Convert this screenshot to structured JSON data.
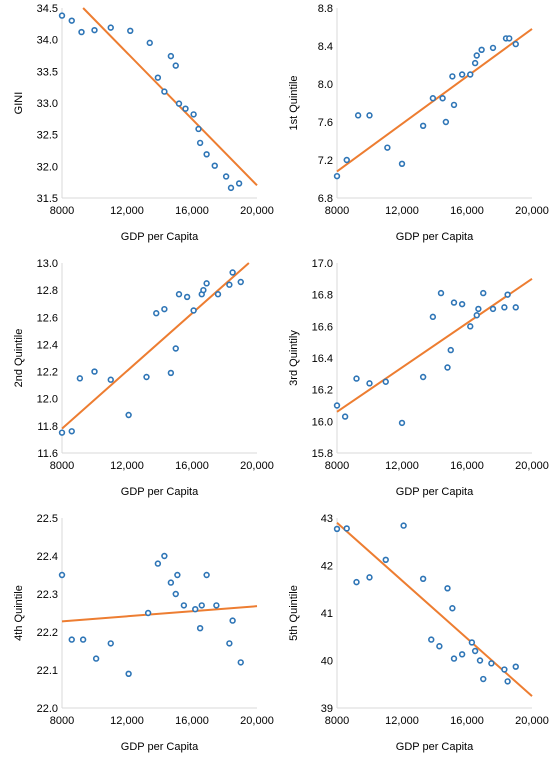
{
  "colors": {
    "points": "#2E75B6",
    "trend": "#ED7D31",
    "axis": "#D9D9D9"
  },
  "chart_data": [
    {
      "type": "scatter",
      "xlabel": "GDP per Capita",
      "ylabel": "GINI",
      "xlim": [
        8000,
        20000
      ],
      "ylim": [
        31.5,
        34.5
      ],
      "xticks": [
        "8000",
        "12,000",
        "16,000",
        "20,000"
      ],
      "yticks": [
        "31.5",
        "32.0",
        "32.5",
        "33.0",
        "33.5",
        "34.0",
        "34.5"
      ],
      "trendline": {
        "x": [
          9300,
          20000
        ],
        "y": [
          34.5,
          31.7
        ]
      },
      "points": [
        [
          8000,
          34.38
        ],
        [
          8600,
          34.3
        ],
        [
          9200,
          34.12
        ],
        [
          10000,
          34.15
        ],
        [
          11000,
          34.19
        ],
        [
          12200,
          34.14
        ],
        [
          13400,
          33.95
        ],
        [
          13900,
          33.4
        ],
        [
          14300,
          33.18
        ],
        [
          14700,
          33.74
        ],
        [
          15000,
          33.59
        ],
        [
          15200,
          32.99
        ],
        [
          15600,
          32.91
        ],
        [
          16100,
          32.82
        ],
        [
          16400,
          32.59
        ],
        [
          16500,
          32.37
        ],
        [
          16900,
          32.19
        ],
        [
          17400,
          32.01
        ],
        [
          18100,
          31.84
        ],
        [
          18400,
          31.66
        ],
        [
          18900,
          31.73
        ]
      ]
    },
    {
      "type": "scatter",
      "xlabel": "GDP per Capita",
      "ylabel": "1st Quintile",
      "xlim": [
        8000,
        20000
      ],
      "ylim": [
        6.8,
        8.8
      ],
      "xticks": [
        "8000",
        "12,000",
        "16,000",
        "20,000"
      ],
      "yticks": [
        "6.8",
        "7.2",
        "7.6",
        "8.0",
        "8.4",
        "8.8"
      ],
      "trendline": {
        "x": [
          8000,
          20000
        ],
        "y": [
          7.08,
          8.58
        ]
      },
      "points": [
        [
          8000,
          7.03
        ],
        [
          8600,
          7.2
        ],
        [
          9300,
          7.67
        ],
        [
          10000,
          7.67
        ],
        [
          11100,
          7.33
        ],
        [
          12000,
          7.16
        ],
        [
          13300,
          7.56
        ],
        [
          13900,
          7.85
        ],
        [
          14500,
          7.85
        ],
        [
          14700,
          7.6
        ],
        [
          15100,
          8.08
        ],
        [
          15200,
          7.78
        ],
        [
          15700,
          8.1
        ],
        [
          16200,
          8.1
        ],
        [
          16500,
          8.22
        ],
        [
          16600,
          8.3
        ],
        [
          16900,
          8.36
        ],
        [
          17600,
          8.38
        ],
        [
          18400,
          8.48
        ],
        [
          18600,
          8.48
        ],
        [
          19000,
          8.42
        ]
      ]
    },
    {
      "type": "scatter",
      "xlabel": "GDP per Capita",
      "ylabel": "2nd Quintile",
      "xlim": [
        8000,
        20000
      ],
      "ylim": [
        11.6,
        13.0
      ],
      "xticks": [
        "8000",
        "12,000",
        "16,000",
        "20,000"
      ],
      "yticks": [
        "11.6",
        "11.8",
        "12.0",
        "12.2",
        "12.4",
        "12.6",
        "12.8",
        "13.0"
      ],
      "trendline": {
        "x": [
          8000,
          19500
        ],
        "y": [
          11.78,
          13.0
        ]
      },
      "points": [
        [
          8000,
          11.75
        ],
        [
          8600,
          11.76
        ],
        [
          9100,
          12.15
        ],
        [
          10000,
          12.2
        ],
        [
          11000,
          12.14
        ],
        [
          12100,
          11.88
        ],
        [
          13200,
          12.16
        ],
        [
          13800,
          12.63
        ],
        [
          14300,
          12.66
        ],
        [
          14700,
          12.19
        ],
        [
          15000,
          12.37
        ],
        [
          15200,
          12.77
        ],
        [
          15700,
          12.75
        ],
        [
          16100,
          12.65
        ],
        [
          16600,
          12.77
        ],
        [
          16700,
          12.8
        ],
        [
          16900,
          12.85
        ],
        [
          17600,
          12.77
        ],
        [
          18300,
          12.84
        ],
        [
          18500,
          12.93
        ],
        [
          19000,
          12.86
        ]
      ]
    },
    {
      "type": "scatter",
      "xlabel": "GDP per Capita",
      "ylabel": "3rd Quintily",
      "xlim": [
        8000,
        20000
      ],
      "ylim": [
        15.8,
        17.0
      ],
      "xticks": [
        "8000",
        "12,000",
        "16,000",
        "20,000"
      ],
      "yticks": [
        "15.8",
        "16.0",
        "16.2",
        "16.4",
        "16.6",
        "16.8",
        "17.0"
      ],
      "trendline": {
        "x": [
          8000,
          20000
        ],
        "y": [
          16.06,
          16.9
        ]
      },
      "points": [
        [
          8000,
          16.1
        ],
        [
          8500,
          16.03
        ],
        [
          9200,
          16.27
        ],
        [
          10000,
          16.24
        ],
        [
          11000,
          16.25
        ],
        [
          12000,
          15.99
        ],
        [
          13300,
          16.28
        ],
        [
          13900,
          16.66
        ],
        [
          14400,
          16.81
        ],
        [
          14800,
          16.34
        ],
        [
          15000,
          16.45
        ],
        [
          15200,
          16.75
        ],
        [
          15700,
          16.74
        ],
        [
          16200,
          16.6
        ],
        [
          16600,
          16.67
        ],
        [
          16700,
          16.71
        ],
        [
          17000,
          16.81
        ],
        [
          17600,
          16.71
        ],
        [
          18300,
          16.72
        ],
        [
          18500,
          16.8
        ],
        [
          19000,
          16.72
        ]
      ]
    },
    {
      "type": "scatter",
      "xlabel": "GDP per Capita",
      "ylabel": "4th Quintile",
      "xlim": [
        8000,
        20000
      ],
      "ylim": [
        22.0,
        22.5
      ],
      "xticks": [
        "8000",
        "12,000",
        "16,000",
        "20,000"
      ],
      "yticks": [
        "22.0",
        "22.1",
        "22.2",
        "22.3",
        "22.4",
        "22.5"
      ],
      "trendline": {
        "x": [
          8000,
          20000
        ],
        "y": [
          22.228,
          22.268
        ]
      },
      "points": [
        [
          8000,
          22.35
        ],
        [
          8600,
          22.18
        ],
        [
          9300,
          22.18
        ],
        [
          10100,
          22.13
        ],
        [
          11000,
          22.17
        ],
        [
          12100,
          22.09
        ],
        [
          13300,
          22.25
        ],
        [
          13900,
          22.38
        ],
        [
          14300,
          22.4
        ],
        [
          14700,
          22.33
        ],
        [
          15000,
          22.3
        ],
        [
          15100,
          22.35
        ],
        [
          15500,
          22.27
        ],
        [
          16200,
          22.26
        ],
        [
          16500,
          22.21
        ],
        [
          16600,
          22.27
        ],
        [
          16900,
          22.35
        ],
        [
          17500,
          22.27
        ],
        [
          18300,
          22.17
        ],
        [
          18500,
          22.23
        ],
        [
          19000,
          22.12
        ]
      ]
    },
    {
      "type": "scatter",
      "xlabel": "GDP per Capita",
      "ylabel": "5th Quintile",
      "xlim": [
        8000,
        20000
      ],
      "ylim": [
        39,
        43
      ],
      "xticks": [
        "8000",
        "12,000",
        "16,000",
        "20,000"
      ],
      "yticks": [
        "39",
        "40",
        "41",
        "42",
        "43"
      ],
      "trendline": {
        "x": [
          8000,
          20000
        ],
        "y": [
          42.9,
          39.25
        ]
      },
      "points": [
        [
          8000,
          42.77
        ],
        [
          8600,
          42.78
        ],
        [
          9200,
          41.65
        ],
        [
          10000,
          41.75
        ],
        [
          11000,
          42.12
        ],
        [
          12100,
          42.84
        ],
        [
          13300,
          41.72
        ],
        [
          13800,
          40.44
        ],
        [
          14300,
          40.3
        ],
        [
          14800,
          41.52
        ],
        [
          15100,
          41.1
        ],
        [
          15200,
          40.04
        ],
        [
          15700,
          40.13
        ],
        [
          16300,
          40.38
        ],
        [
          16500,
          40.2
        ],
        [
          16800,
          40.0
        ],
        [
          17000,
          39.61
        ],
        [
          17500,
          39.94
        ],
        [
          18300,
          39.81
        ],
        [
          18500,
          39.56
        ],
        [
          19000,
          39.87
        ]
      ]
    }
  ]
}
